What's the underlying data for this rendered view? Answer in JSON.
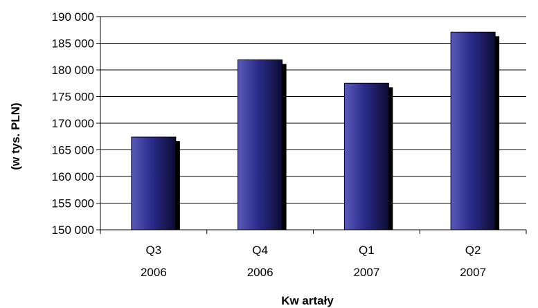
{
  "chart_data": {
    "type": "bar",
    "title": "",
    "xlabel": "Kw artały",
    "ylabel": "(w tys. PLN)",
    "categories": [
      [
        "Q3",
        "2006"
      ],
      [
        "Q4",
        "2006"
      ],
      [
        "Q1",
        "2007"
      ],
      [
        "Q2",
        "2007"
      ]
    ],
    "values": [
      167400,
      181900,
      177500,
      187100
    ],
    "ylim": [
      150000,
      190000
    ],
    "yticks": [
      150000,
      155000,
      160000,
      165000,
      170000,
      175000,
      180000,
      185000,
      190000
    ],
    "ytick_labels": [
      "150 000",
      "155 000",
      "160 000",
      "165 000",
      "170 000",
      "175 000",
      "180 000",
      "185 000",
      "190 000"
    ],
    "grid": true,
    "legend": "none",
    "colors": {
      "bar_light": "#5a5ab8",
      "bar_mid": "#2b2b8c",
      "bar_dark": "#0c0c33",
      "bar_shadow": "#000000",
      "grid": "#000000"
    }
  }
}
